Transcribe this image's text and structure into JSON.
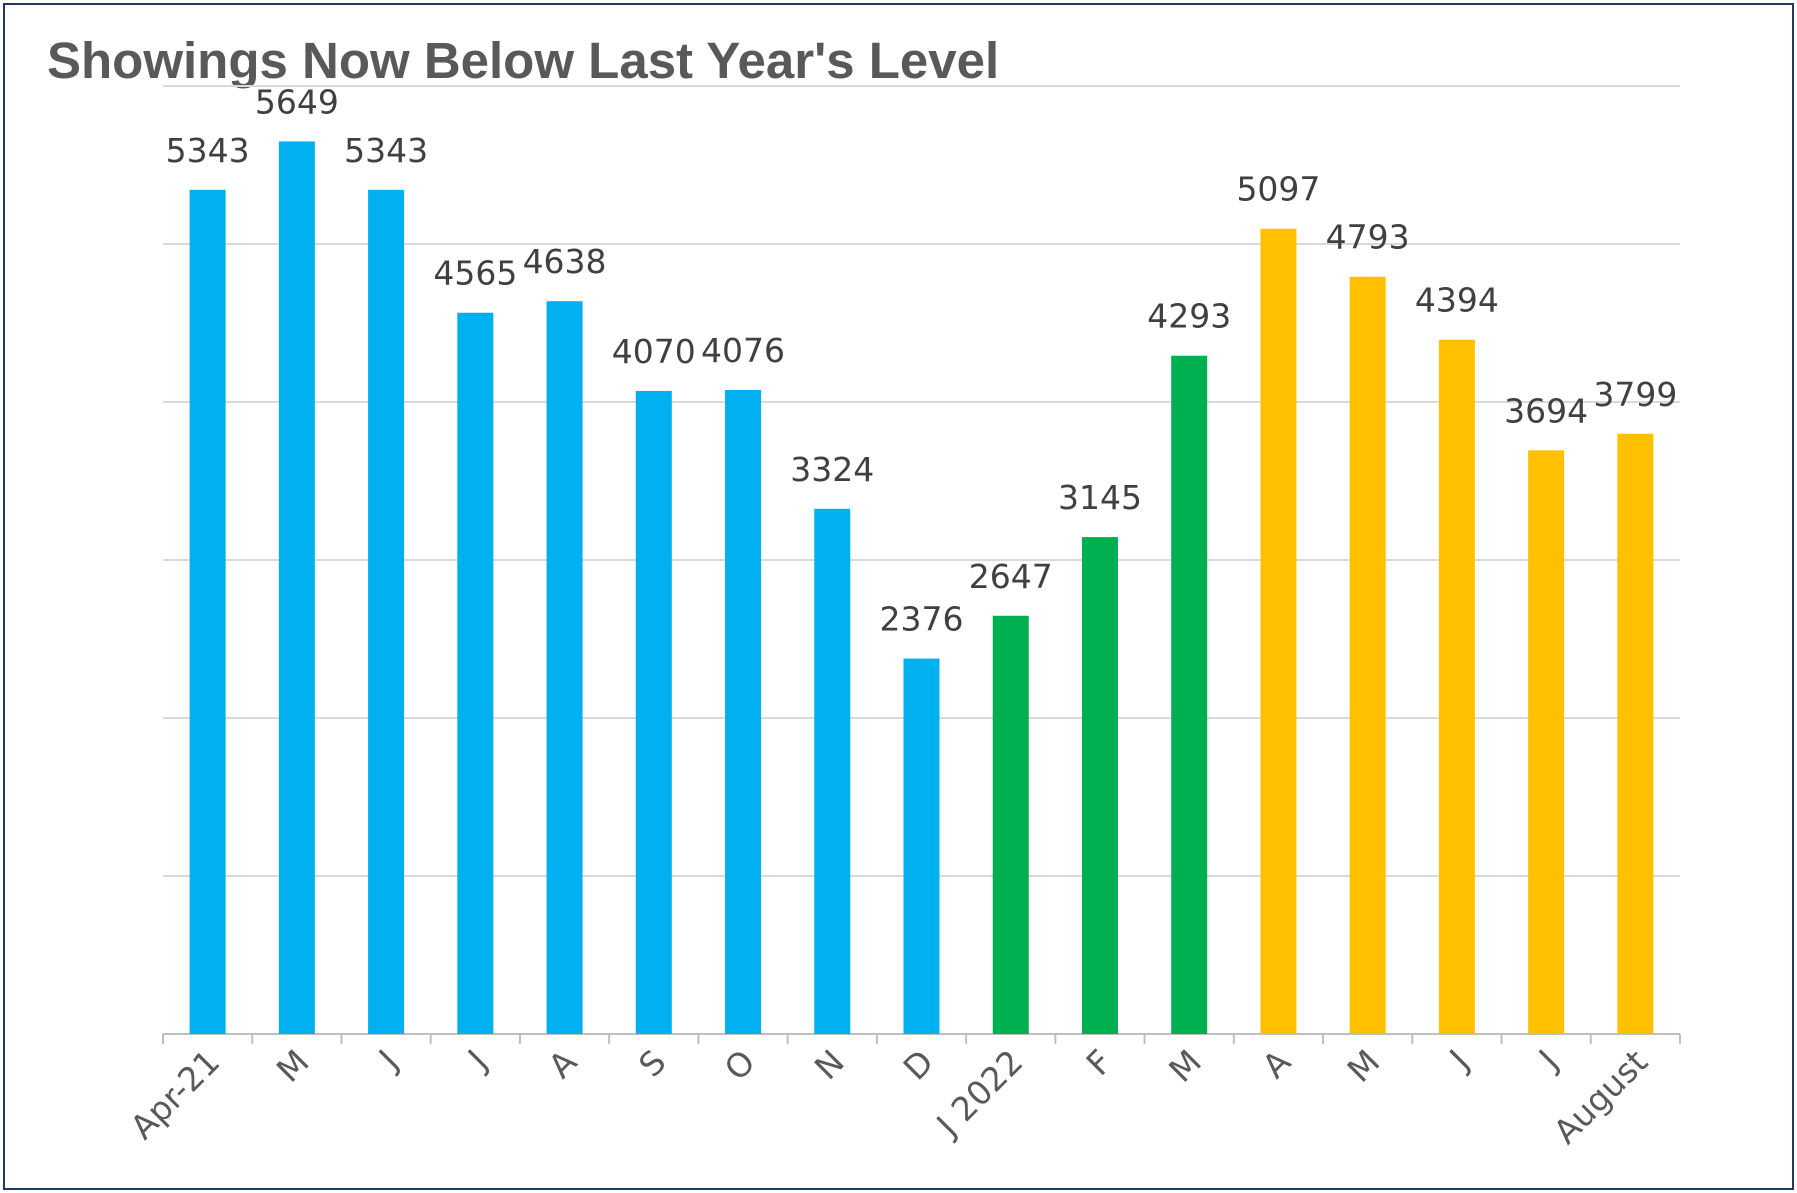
{
  "chart_data": {
    "type": "bar",
    "title": "Showings Now Below Last Year's Level",
    "xlabel": "",
    "ylabel": "",
    "categories": [
      "Apr-21",
      "M",
      "J",
      "J",
      "A",
      "S",
      "O",
      "N",
      "D",
      "J 2022",
      "F",
      "M",
      "A",
      "M",
      "J",
      "J",
      "August"
    ],
    "values": [
      5343,
      5649,
      5343,
      4565,
      4638,
      4070,
      4076,
      3324,
      2376,
      2647,
      3145,
      4293,
      5097,
      4793,
      4394,
      3694,
      3799
    ],
    "bar_colors": [
      "#00b0f0",
      "#00b0f0",
      "#00b0f0",
      "#00b0f0",
      "#00b0f0",
      "#00b0f0",
      "#00b0f0",
      "#00b0f0",
      "#00b0f0",
      "#00b050",
      "#00b050",
      "#00b050",
      "#ffc000",
      "#ffc000",
      "#ffc000",
      "#ffc000",
      "#ffc000"
    ],
    "ylim": [
      0,
      6000
    ],
    "gridlines": true,
    "y_tick_labels_shown": false,
    "data_labels": true,
    "legend": "none",
    "colors": {
      "gridline": "#d9d9d9",
      "axis": "#bfbfbf",
      "title": "#595959",
      "data_label": "#404040",
      "tick_label": "#595959",
      "border": "#1f3864"
    }
  }
}
